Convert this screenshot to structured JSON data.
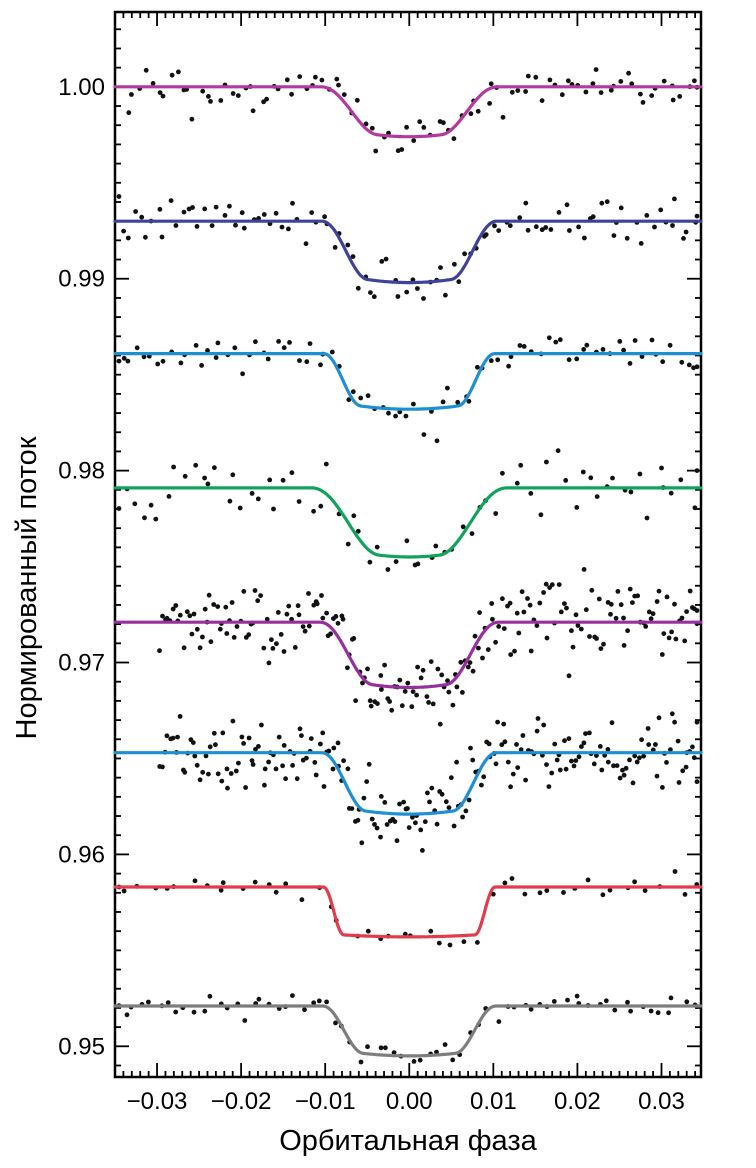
{
  "chart_data": {
    "type": "scatter",
    "title": "",
    "xlabel": "Орбитальная фаза",
    "ylabel": "Нормированный поток",
    "xlim": [
      -0.035,
      0.0347
    ],
    "ylim": [
      0.9484,
      1.0039
    ],
    "grid": false,
    "legend": "none",
    "point_color": "#111111",
    "axis_color": "#000000",
    "x_major_ticks": [
      -0.03,
      -0.02,
      -0.01,
      0.0,
      0.01,
      0.02,
      0.03
    ],
    "x_tick_labels": [
      "−0.03",
      "−0.02",
      "−0.01",
      "0.00",
      "0.01",
      "0.02",
      "0.03"
    ],
    "x_minor_step": 0.001,
    "y_major_ticks": [
      1.0,
      0.99,
      0.98,
      0.97,
      0.96,
      0.95
    ],
    "y_tick_labels": [
      "1.00",
      "0.99",
      "0.98",
      "0.97",
      "0.96",
      "0.95"
    ],
    "y_minor_step": 0.001,
    "series_description": "Eight transit light curves vertically offset; dots are observed flux, solid lines are transit model fits centered at phase 0 with total half-duration ~0.0105 in phase.",
    "series": [
      {
        "name": "lightcurve-1",
        "model_color": "#b2399e",
        "baseline": 1.0,
        "depth": 0.0026,
        "half_total": 0.0105,
        "half_flat": 0.0038,
        "bottom_curvature": 0.3,
        "n_points": 95,
        "noise_sigma": 0.00055,
        "x_start": -0.0335,
        "x_end": 0.0346,
        "seed": 3
      },
      {
        "name": "lightcurve-2",
        "model_color": "#3e4399",
        "baseline": 0.993,
        "depth": 0.0032,
        "half_total": 0.0104,
        "half_flat": 0.005,
        "bottom_curvature": 0.22,
        "n_points": 100,
        "noise_sigma": 0.00055,
        "x_start": -0.0348,
        "x_end": 0.0346,
        "seed": 7
      },
      {
        "name": "lightcurve-3",
        "model_color": "#1d8fd2",
        "baseline": 0.9861,
        "depth": 0.0029,
        "half_total": 0.0102,
        "half_flat": 0.0058,
        "bottom_curvature": 0.18,
        "n_points": 85,
        "noise_sigma": 0.00045,
        "x_start": -0.0348,
        "x_end": 0.0346,
        "seed": 11
      },
      {
        "name": "lightcurve-4",
        "model_color": "#10a35a",
        "baseline": 0.9791,
        "depth": 0.0036,
        "half_total": 0.0116,
        "half_flat": 0.0036,
        "bottom_curvature": 0.28,
        "n_points": 70,
        "noise_sigma": 0.00075,
        "x_start": -0.0348,
        "x_end": 0.0346,
        "seed": 19
      },
      {
        "name": "lightcurve-5",
        "model_color": "#96309e",
        "baseline": 0.9721,
        "depth": 0.0034,
        "half_total": 0.0106,
        "half_flat": 0.0044,
        "bottom_curvature": 0.25,
        "n_points": 210,
        "noise_sigma": 0.00095,
        "x_start": -0.0296,
        "x_end": 0.0346,
        "seed": 23
      },
      {
        "name": "lightcurve-6",
        "model_color": "#1d8fd2",
        "baseline": 0.9653,
        "depth": 0.0032,
        "half_total": 0.0104,
        "half_flat": 0.0052,
        "bottom_curvature": 0.2,
        "n_points": 215,
        "noise_sigma": 0.00095,
        "x_start": -0.0296,
        "x_end": 0.0346,
        "seed": 29
      },
      {
        "name": "lightcurve-7",
        "model_color": "#e23b4c",
        "baseline": 0.9583,
        "depth": 0.0026,
        "half_total": 0.0102,
        "half_flat": 0.0078,
        "bottom_curvature": 0.07,
        "n_points": 48,
        "noise_sigma": 0.00028,
        "x_start": -0.0348,
        "x_end": 0.0346,
        "seed": 31
      },
      {
        "name": "lightcurve-8",
        "model_color": "#7d7d7d",
        "baseline": 0.9521,
        "depth": 0.0026,
        "half_total": 0.0103,
        "half_flat": 0.0055,
        "bottom_curvature": 0.18,
        "n_points": 70,
        "noise_sigma": 0.0003,
        "x_start": -0.0348,
        "x_end": 0.0346,
        "seed": 37
      }
    ]
  }
}
